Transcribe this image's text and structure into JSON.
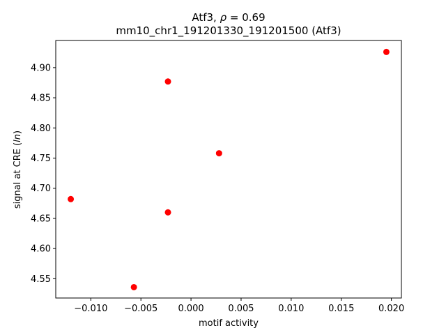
{
  "chart_data": {
    "type": "scatter",
    "title_prefix": "Atf3, ",
    "title_rho_symbol": "ρ",
    "title_rho_value": " = 0.69",
    "subtitle": "mm10_chr1_191201330_191201500 (Atf3)",
    "xlabel": "motif activity",
    "ylabel_prefix": "signal at CRE (",
    "ylabel_italic": "ln",
    "ylabel_suffix": ")",
    "xlim": [
      -0.0135,
      0.021
    ],
    "ylim": [
      4.518,
      4.945
    ],
    "xticks": [
      -0.01,
      -0.005,
      0.0,
      0.005,
      0.01,
      0.015,
      0.02
    ],
    "xtick_labels": [
      "−0.010",
      "−0.005",
      "0.000",
      "0.005",
      "0.010",
      "0.015",
      "0.020"
    ],
    "yticks": [
      4.55,
      4.6,
      4.65,
      4.7,
      4.75,
      4.8,
      4.85,
      4.9
    ],
    "ytick_labels": [
      "4.55",
      "4.60",
      "4.65",
      "4.70",
      "4.75",
      "4.80",
      "4.85",
      "4.90"
    ],
    "marker_color": "#ff0000",
    "grid": false,
    "points": [
      {
        "x": -0.012,
        "y": 4.682
      },
      {
        "x": -0.0057,
        "y": 4.536
      },
      {
        "x": -0.0023,
        "y": 4.877
      },
      {
        "x": -0.0023,
        "y": 4.66
      },
      {
        "x": 0.0028,
        "y": 4.758
      },
      {
        "x": 0.0195,
        "y": 4.926
      }
    ]
  }
}
